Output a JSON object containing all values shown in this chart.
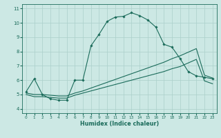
{
  "x": [
    0,
    1,
    2,
    3,
    4,
    5,
    6,
    7,
    8,
    9,
    10,
    11,
    12,
    13,
    14,
    15,
    16,
    17,
    18,
    19,
    20,
    21,
    22,
    23
  ],
  "line_upper_y": [
    5.2,
    6.1,
    5.0,
    4.7,
    4.6,
    4.6,
    6.0,
    6.0,
    8.4,
    9.2,
    10.1,
    10.4,
    10.45,
    10.7,
    10.5,
    10.2,
    9.7,
    8.5,
    8.3,
    7.5,
    6.6,
    6.3,
    6.2,
    6.1
  ],
  "line_mid_y": [
    5.1,
    5.0,
    5.0,
    4.95,
    4.9,
    4.9,
    5.1,
    5.25,
    5.45,
    5.65,
    5.85,
    6.05,
    6.25,
    6.45,
    6.65,
    6.85,
    7.05,
    7.25,
    7.5,
    7.7,
    7.95,
    8.2,
    6.35,
    6.15
  ],
  "line_lower_y": [
    5.0,
    4.85,
    4.85,
    4.8,
    4.75,
    4.75,
    4.95,
    5.1,
    5.25,
    5.4,
    5.55,
    5.7,
    5.85,
    6.0,
    6.15,
    6.3,
    6.45,
    6.6,
    6.8,
    6.95,
    7.2,
    7.45,
    5.95,
    5.75
  ],
  "line_color": "#1a6b5a",
  "bg_color": "#cce8e4",
  "grid_color": "#aacfca",
  "xlabel": "Humidex (Indice chaleur)",
  "yticks": [
    4,
    5,
    6,
    7,
    8,
    9,
    10,
    11
  ],
  "xticks": [
    0,
    1,
    2,
    3,
    4,
    5,
    6,
    7,
    8,
    9,
    10,
    11,
    12,
    13,
    14,
    15,
    16,
    17,
    18,
    19,
    20,
    21,
    22,
    23
  ],
  "ylim": [
    3.7,
    11.3
  ],
  "xlim": [
    -0.5,
    23.5
  ]
}
